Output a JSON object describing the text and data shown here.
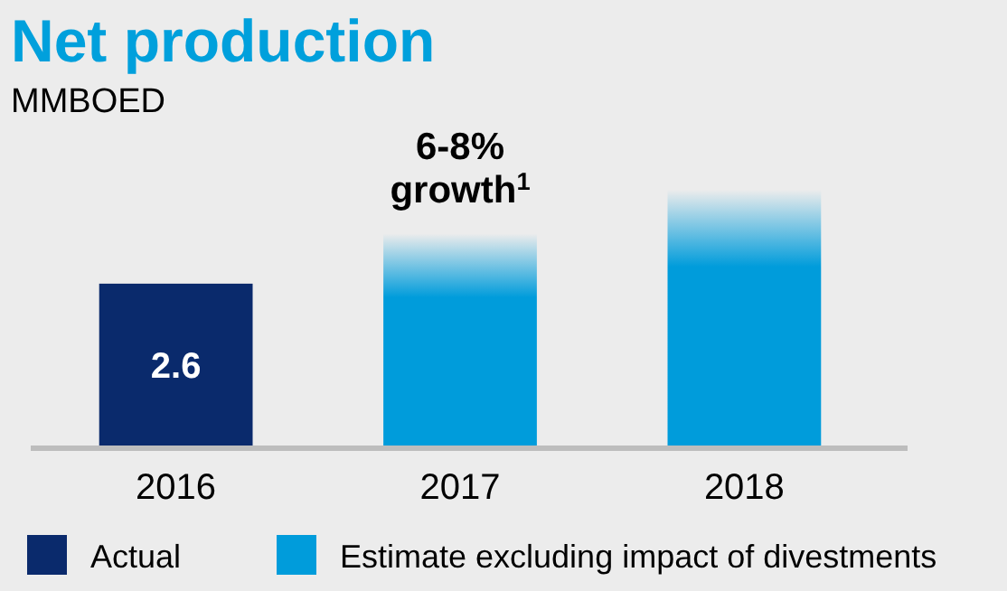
{
  "chart_data": {
    "type": "bar",
    "title": "Net production",
    "subtitle": "MMBOED",
    "categories": [
      "2016",
      "2017",
      "2018"
    ],
    "series": [
      {
        "name": "Actual",
        "color": "#0a2a6c",
        "values": [
          2.6,
          null,
          null
        ],
        "value_labels": [
          "2.6",
          null,
          null
        ]
      },
      {
        "name": "Estimate excluding impact of divestments",
        "color": "#009cdb",
        "values": [
          null,
          3.4,
          4.1
        ]
      }
    ],
    "annotations": [
      "6-8%\ngrowth$^{1}$"
    ],
    "legend": "bottom"
  }
}
